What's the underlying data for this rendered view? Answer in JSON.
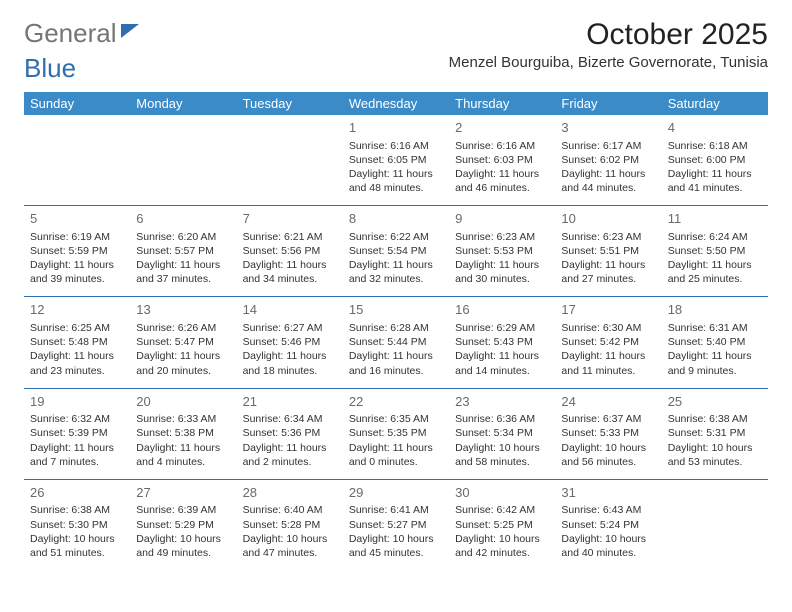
{
  "logo": {
    "part1": "General",
    "part2": "Blue"
  },
  "title": "October 2025",
  "subtitle": "Menzel Bourguiba, Bizerte Governorate, Tunisia",
  "colors": {
    "header_bg": "#3b8bc8",
    "header_text": "#ffffff",
    "row_border": "#2f6fb0",
    "logo_gray": "#757575",
    "logo_blue": "#2f6fb0",
    "text": "#333333"
  },
  "day_names": [
    "Sunday",
    "Monday",
    "Tuesday",
    "Wednesday",
    "Thursday",
    "Friday",
    "Saturday"
  ],
  "weeks": [
    [
      null,
      null,
      null,
      {
        "n": "1",
        "sunrise": "6:16 AM",
        "sunset": "6:05 PM",
        "daylight": "11 hours and 48 minutes."
      },
      {
        "n": "2",
        "sunrise": "6:16 AM",
        "sunset": "6:03 PM",
        "daylight": "11 hours and 46 minutes."
      },
      {
        "n": "3",
        "sunrise": "6:17 AM",
        "sunset": "6:02 PM",
        "daylight": "11 hours and 44 minutes."
      },
      {
        "n": "4",
        "sunrise": "6:18 AM",
        "sunset": "6:00 PM",
        "daylight": "11 hours and 41 minutes."
      }
    ],
    [
      {
        "n": "5",
        "sunrise": "6:19 AM",
        "sunset": "5:59 PM",
        "daylight": "11 hours and 39 minutes."
      },
      {
        "n": "6",
        "sunrise": "6:20 AM",
        "sunset": "5:57 PM",
        "daylight": "11 hours and 37 minutes."
      },
      {
        "n": "7",
        "sunrise": "6:21 AM",
        "sunset": "5:56 PM",
        "daylight": "11 hours and 34 minutes."
      },
      {
        "n": "8",
        "sunrise": "6:22 AM",
        "sunset": "5:54 PM",
        "daylight": "11 hours and 32 minutes."
      },
      {
        "n": "9",
        "sunrise": "6:23 AM",
        "sunset": "5:53 PM",
        "daylight": "11 hours and 30 minutes."
      },
      {
        "n": "10",
        "sunrise": "6:23 AM",
        "sunset": "5:51 PM",
        "daylight": "11 hours and 27 minutes."
      },
      {
        "n": "11",
        "sunrise": "6:24 AM",
        "sunset": "5:50 PM",
        "daylight": "11 hours and 25 minutes."
      }
    ],
    [
      {
        "n": "12",
        "sunrise": "6:25 AM",
        "sunset": "5:48 PM",
        "daylight": "11 hours and 23 minutes."
      },
      {
        "n": "13",
        "sunrise": "6:26 AM",
        "sunset": "5:47 PM",
        "daylight": "11 hours and 20 minutes."
      },
      {
        "n": "14",
        "sunrise": "6:27 AM",
        "sunset": "5:46 PM",
        "daylight": "11 hours and 18 minutes."
      },
      {
        "n": "15",
        "sunrise": "6:28 AM",
        "sunset": "5:44 PM",
        "daylight": "11 hours and 16 minutes."
      },
      {
        "n": "16",
        "sunrise": "6:29 AM",
        "sunset": "5:43 PM",
        "daylight": "11 hours and 14 minutes."
      },
      {
        "n": "17",
        "sunrise": "6:30 AM",
        "sunset": "5:42 PM",
        "daylight": "11 hours and 11 minutes."
      },
      {
        "n": "18",
        "sunrise": "6:31 AM",
        "sunset": "5:40 PM",
        "daylight": "11 hours and 9 minutes."
      }
    ],
    [
      {
        "n": "19",
        "sunrise": "6:32 AM",
        "sunset": "5:39 PM",
        "daylight": "11 hours and 7 minutes."
      },
      {
        "n": "20",
        "sunrise": "6:33 AM",
        "sunset": "5:38 PM",
        "daylight": "11 hours and 4 minutes."
      },
      {
        "n": "21",
        "sunrise": "6:34 AM",
        "sunset": "5:36 PM",
        "daylight": "11 hours and 2 minutes."
      },
      {
        "n": "22",
        "sunrise": "6:35 AM",
        "sunset": "5:35 PM",
        "daylight": "11 hours and 0 minutes."
      },
      {
        "n": "23",
        "sunrise": "6:36 AM",
        "sunset": "5:34 PM",
        "daylight": "10 hours and 58 minutes."
      },
      {
        "n": "24",
        "sunrise": "6:37 AM",
        "sunset": "5:33 PM",
        "daylight": "10 hours and 56 minutes."
      },
      {
        "n": "25",
        "sunrise": "6:38 AM",
        "sunset": "5:31 PM",
        "daylight": "10 hours and 53 minutes."
      }
    ],
    [
      {
        "n": "26",
        "sunrise": "6:38 AM",
        "sunset": "5:30 PM",
        "daylight": "10 hours and 51 minutes."
      },
      {
        "n": "27",
        "sunrise": "6:39 AM",
        "sunset": "5:29 PM",
        "daylight": "10 hours and 49 minutes."
      },
      {
        "n": "28",
        "sunrise": "6:40 AM",
        "sunset": "5:28 PM",
        "daylight": "10 hours and 47 minutes."
      },
      {
        "n": "29",
        "sunrise": "6:41 AM",
        "sunset": "5:27 PM",
        "daylight": "10 hours and 45 minutes."
      },
      {
        "n": "30",
        "sunrise": "6:42 AM",
        "sunset": "5:25 PM",
        "daylight": "10 hours and 42 minutes."
      },
      {
        "n": "31",
        "sunrise": "6:43 AM",
        "sunset": "5:24 PM",
        "daylight": "10 hours and 40 minutes."
      },
      null
    ]
  ],
  "labels": {
    "sunrise": "Sunrise:",
    "sunset": "Sunset:",
    "daylight": "Daylight:"
  }
}
